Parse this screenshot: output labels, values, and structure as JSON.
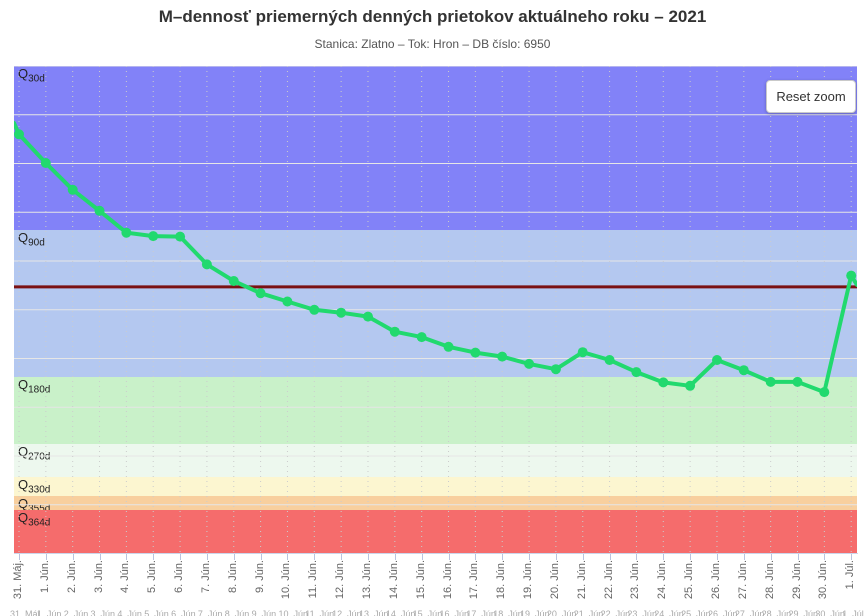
{
  "controls": {
    "reset_zoom_label": "Reset zoom"
  },
  "chart_data": {
    "type": "line",
    "title": "M–dennosť priemerných denných prietokov aktuálneho roku – 2021",
    "subtitle": "Stanica: Zlatno – Tok: Hron – DB číslo: 6950",
    "x_labels": [
      "31. Máj.",
      "1. Jún.",
      "2. Jún.",
      "3. Jún.",
      "4. Jún.",
      "5. Jún.",
      "6. Jún.",
      "7. Jún.",
      "8. Jún.",
      "9. Jún.",
      "10. Jún.",
      "11. Jún.",
      "12. Jún.",
      "13. Jún.",
      "14. Jún.",
      "15. Jún.",
      "16. Jún.",
      "17. Jún.",
      "18. Jún.",
      "19. Jún.",
      "20. Jún.",
      "21. Jún.",
      "22. Jún.",
      "23. Jún.",
      "24. Jún.",
      "25. Jún.",
      "26. Jún.",
      "27. Jún.",
      "28. Jún.",
      "29. Jún.",
      "30. Jún.",
      "1. Júl."
    ],
    "y_axis": {
      "labels_visible": false,
      "ylim_pct": [
        0,
        100
      ],
      "gridline_divisions": 10,
      "units_note": "y-axis unlabeled in source; values estimated as percent of plot height"
    },
    "series": [
      {
        "color": "#21d96e",
        "line_width": 4,
        "marker_radius": 5,
        "values_pct": [
          86.0,
          80.1,
          74.6,
          70.3,
          65.8,
          65.1,
          65.0,
          59.3,
          55.9,
          53.4,
          51.7,
          50.0,
          49.4,
          48.6,
          45.5,
          44.4,
          42.4,
          41.2,
          40.4,
          38.9,
          37.8,
          41.3,
          39.7,
          37.2,
          35.1,
          34.4,
          39.7,
          37.6,
          35.2,
          35.2,
          33.1,
          57.0
        ],
        "clipped_entry": {
          "x_days_before_first": 0.2,
          "value_pct": 88.3
        },
        "clipped_exit": {
          "x_days_after_last": 0.25,
          "value_pct": 55.1
        }
      }
    ],
    "plot_bands": [
      {
        "id": "q30d",
        "label": "Q",
        "sub": "30d",
        "from_pct": 66.4,
        "to_pct": 100,
        "color": "#8282f8"
      },
      {
        "id": "q90d",
        "label": "Q",
        "sub": "90d",
        "from_pct": 36.2,
        "to_pct": 66.4,
        "color": "#b4c8f0"
      },
      {
        "id": "q180d",
        "label": "Q",
        "sub": "180d",
        "from_pct": 22.5,
        "to_pct": 36.2,
        "color": "#c9f1c9"
      },
      {
        "id": "q270d",
        "label": "Q",
        "sub": "270d",
        "from_pct": 15.7,
        "to_pct": 22.5,
        "color": "#edf8ee"
      },
      {
        "id": "q330d",
        "label": "Q",
        "sub": "330d",
        "from_pct": 11.8,
        "to_pct": 15.7,
        "color": "#fcf6d0"
      },
      {
        "id": "q355d",
        "label": "Q",
        "sub": "355d",
        "from_pct": 8.9,
        "to_pct": 11.8,
        "color": "#f8cf9e"
      },
      {
        "id": "q364d",
        "label": "Q",
        "sub": "364d",
        "from_pct": 0,
        "to_pct": 8.9,
        "color": "#f56c6c"
      }
    ],
    "plot_line": {
      "value_pct": 54.7,
      "color": "#7b1113",
      "width": 3
    },
    "grid_colors": {
      "h_grid": "#e6e6e6",
      "v_grid": "#cccccc",
      "axis": "#ccd6eb",
      "x_label": "#666666"
    },
    "legend": {
      "visible": false
    }
  }
}
